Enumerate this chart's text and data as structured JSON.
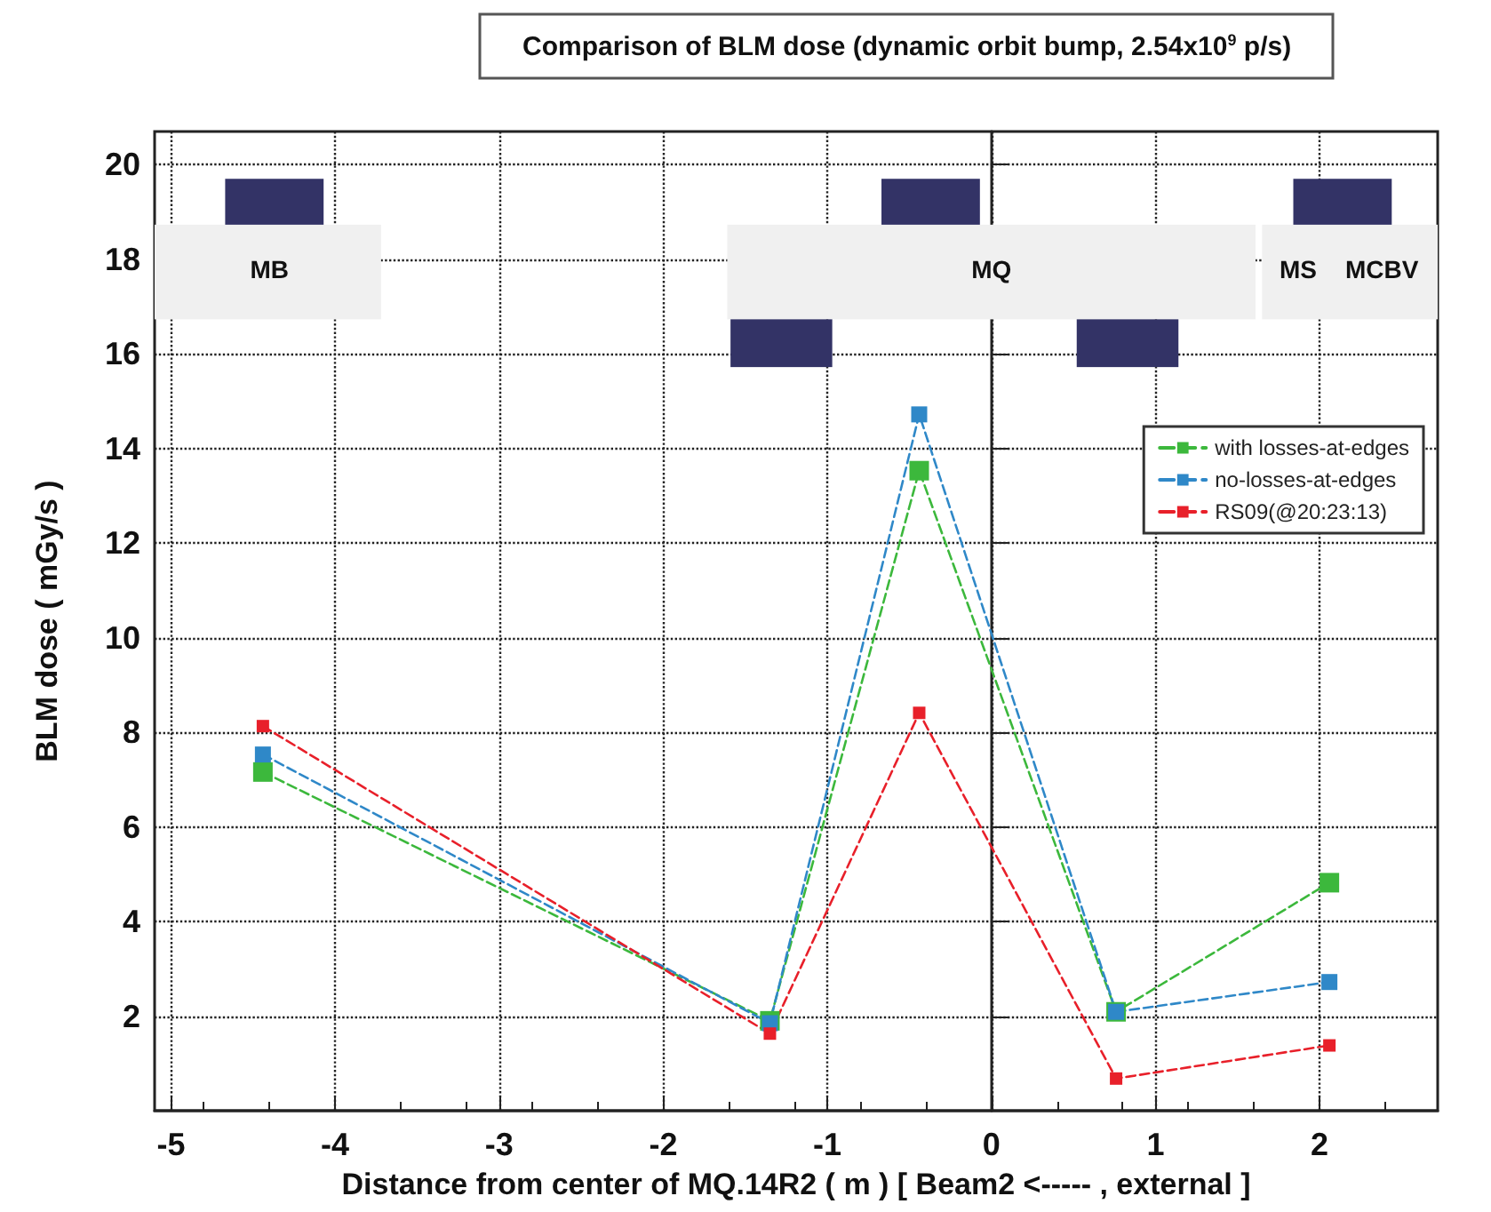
{
  "chart_data": {
    "type": "line",
    "title": "Comparison of BLM dose (dynamic orbit bump, 2.54x10$^{9}$ p/s)",
    "xlabel": "Distance from center of MQ.14R2 ( m ) [ Beam2 <----- , external ]",
    "ylabel": "BLM dose ( mGy/s )",
    "x": [
      -4.44,
      -1.35,
      -0.44,
      0.76,
      2.06
    ],
    "series": [
      {
        "name": "with losses-at-edges",
        "color": "#3cb83c",
        "values": [
          7.16,
          1.9,
          13.53,
          2.09,
          4.82
        ]
      },
      {
        "name": "no-losses-at-edges",
        "color": "#2f88c8",
        "values": [
          7.53,
          1.85,
          14.72,
          2.09,
          2.72
        ]
      },
      {
        "name": "RS09(@20:23:13)",
        "color": "#e8202a",
        "values": [
          8.13,
          1.63,
          8.41,
          0.68,
          1.38
        ]
      }
    ],
    "xlim": [
      -5.1,
      2.72
    ],
    "xticks": [
      -5,
      -4,
      -3,
      -2,
      -1,
      0,
      1,
      2
    ],
    "ylim": [
      0,
      20.7
    ],
    "yticks": [
      2,
      4,
      6,
      8,
      10,
      12,
      14,
      16,
      18,
      20
    ],
    "annotations": [
      "MB",
      "MQ",
      "MS",
      "MCBV"
    ],
    "grid": true,
    "legend": "top right",
    "marker": "square",
    "line_style": "dashed"
  }
}
